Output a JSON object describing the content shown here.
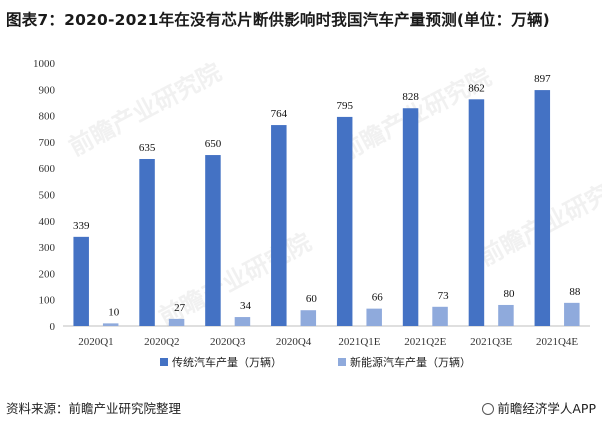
{
  "title": "图表7：2020-2021年在没有芯片断供影响时我国汽车产量预测(单位：万辆)",
  "source": "资料来源：前瞻产业研究院整理",
  "brand": "前瞻经济学人APP",
  "watermark": "前瞻产业研究院",
  "colors": {
    "series1": "#4472C4",
    "series2": "#8FAADC",
    "axis": "#bfbfbf"
  },
  "chart_data": {
    "type": "bar",
    "title": "图表7：2020-2021年在没有芯片断供影响时我国汽车产量预测(单位：万辆)",
    "xlabel": "",
    "ylabel": "",
    "ylim": [
      0,
      1000
    ],
    "yticks": [
      0,
      100,
      200,
      300,
      400,
      500,
      600,
      700,
      800,
      900,
      1000
    ],
    "grid": false,
    "legend_position": "bottom-right",
    "categories": [
      "2020Q1",
      "2020Q2",
      "2020Q3",
      "2020Q4",
      "2021Q1E",
      "2021Q2E",
      "2021Q3E",
      "2021Q4E"
    ],
    "series": [
      {
        "name": "传统汽车产量（万辆）",
        "values": [
          339,
          635,
          650,
          764,
          795,
          828,
          862,
          897
        ]
      },
      {
        "name": "新能源汽车产量（万辆）",
        "values": [
          10,
          27,
          34,
          60,
          66,
          73,
          80,
          88
        ]
      }
    ]
  }
}
